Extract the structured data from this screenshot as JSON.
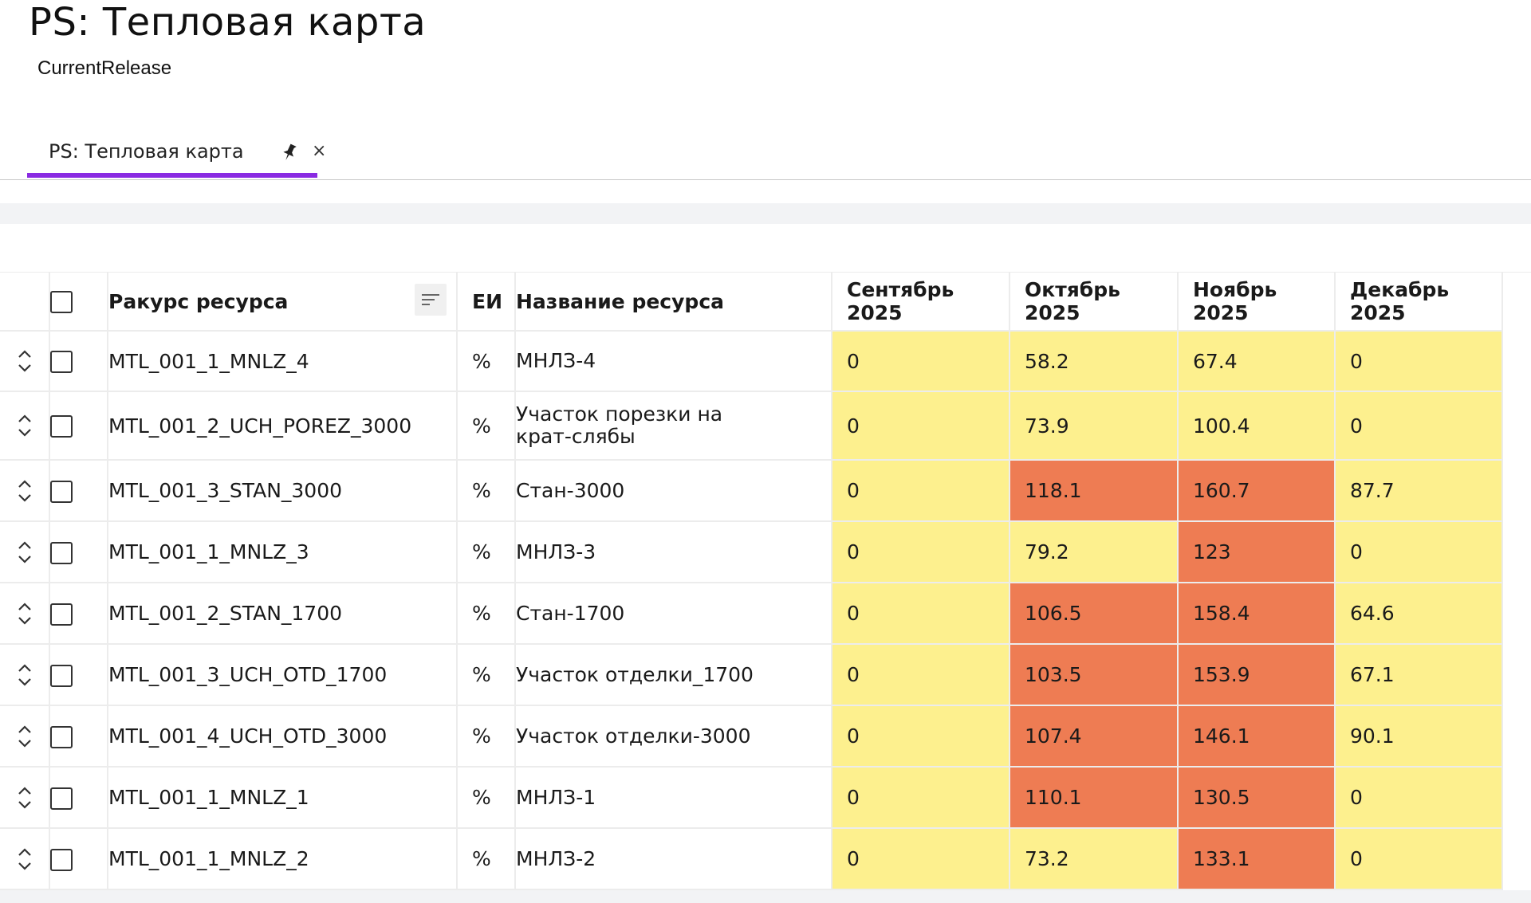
{
  "header": {
    "title": "PS: Тепловая карта",
    "subtitle": "CurrentRelease"
  },
  "tabs": [
    {
      "label": "PS: Тепловая карта",
      "active": true,
      "pinned": true,
      "close_label": "×"
    }
  ],
  "icons": {
    "pin": "pin-icon",
    "close": "close-icon",
    "drag": "drag-handle-icon",
    "sort": "sort-lines-icon"
  },
  "colors": {
    "accent": "#8a2be2",
    "normal_load": "#fdf08e",
    "overload": "#ee7c53"
  },
  "table": {
    "columns": {
      "resource_view": "Ракурс ресурса",
      "unit": "ЕИ",
      "resource_name": "Название ресурса",
      "months": [
        "Сентябрь 2025",
        "Октябрь 2025",
        "Ноябрь 2025",
        "Декабрь 2025"
      ]
    },
    "rows": [
      {
        "code": "MTL_001_1_MNLZ_4",
        "unit": "%",
        "name": "МНЛЗ-4",
        "values": [
          "0",
          "58.2",
          "67.4",
          "0"
        ],
        "levels": [
          "normal",
          "normal",
          "normal",
          "normal"
        ]
      },
      {
        "code": "MTL_001_2_UCH_POREZ_3000",
        "unit": "%",
        "name": "Участок порезки на крат-слябы",
        "values": [
          "0",
          "73.9",
          "100.4",
          "0"
        ],
        "levels": [
          "normal",
          "normal",
          "normal",
          "normal"
        ]
      },
      {
        "code": "MTL_001_3_STAN_3000",
        "unit": "%",
        "name": "Стан-3000",
        "values": [
          "0",
          "118.1",
          "160.7",
          "87.7"
        ],
        "levels": [
          "normal",
          "over",
          "over",
          "normal"
        ]
      },
      {
        "code": "MTL_001_1_MNLZ_3",
        "unit": "%",
        "name": "МНЛЗ-3",
        "values": [
          "0",
          "79.2",
          "123",
          "0"
        ],
        "levels": [
          "normal",
          "normal",
          "over",
          "normal"
        ]
      },
      {
        "code": "MTL_001_2_STAN_1700",
        "unit": "%",
        "name": "Стан-1700",
        "values": [
          "0",
          "106.5",
          "158.4",
          "64.6"
        ],
        "levels": [
          "normal",
          "over",
          "over",
          "normal"
        ]
      },
      {
        "code": "MTL_001_3_UCH_OTD_1700",
        "unit": "%",
        "name": "Участок отделки_1700",
        "values": [
          "0",
          "103.5",
          "153.9",
          "67.1"
        ],
        "levels": [
          "normal",
          "over",
          "over",
          "normal"
        ]
      },
      {
        "code": "MTL_001_4_UCH_OTD_3000",
        "unit": "%",
        "name": "Участок отделки-3000",
        "values": [
          "0",
          "107.4",
          "146.1",
          "90.1"
        ],
        "levels": [
          "normal",
          "over",
          "over",
          "normal"
        ]
      },
      {
        "code": "MTL_001_1_MNLZ_1",
        "unit": "%",
        "name": "МНЛЗ-1",
        "values": [
          "0",
          "110.1",
          "130.5",
          "0"
        ],
        "levels": [
          "normal",
          "over",
          "over",
          "normal"
        ]
      },
      {
        "code": "MTL_001_1_MNLZ_2",
        "unit": "%",
        "name": "МНЛЗ-2",
        "values": [
          "0",
          "73.2",
          "133.1",
          "0"
        ],
        "levels": [
          "normal",
          "normal",
          "over",
          "normal"
        ]
      }
    ]
  }
}
